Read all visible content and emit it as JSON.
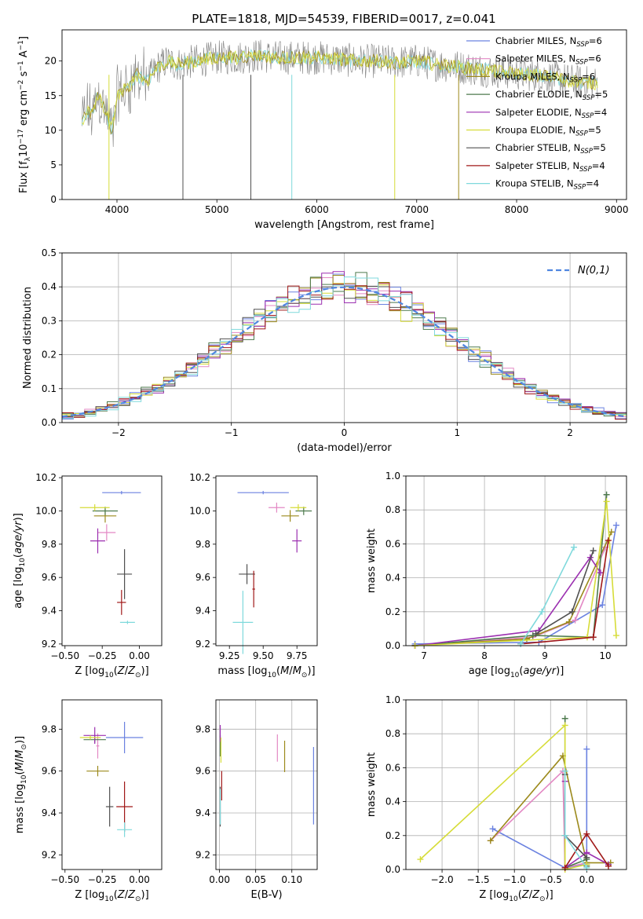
{
  "title": "PLATE=1818, MJD=54539, FIBERID=0017, z=0.041",
  "colors": {
    "series": [
      "#6b82e0",
      "#e388c4",
      "#9c8a1c",
      "#4e7a4e",
      "#9b2fb0",
      "#d6dc38",
      "#505050",
      "#a01818",
      "#7fd9dc"
    ],
    "spectrum_data": "#808080",
    "gauss": "#4f86e0"
  },
  "legend": [
    {
      "text": "Chabrier MILES, N",
      "sub": "SSP",
      "tail": "=6"
    },
    {
      "text": "Salpeter MILES, N",
      "sub": "SSP",
      "tail": "=6"
    },
    {
      "text": "Kroupa MILES, N",
      "sub": "SSP",
      "tail": "=6"
    },
    {
      "text": "Chabrier ELODIE, N",
      "sub": "SSP",
      "tail": "=5"
    },
    {
      "text": "Salpeter ELODIE, N",
      "sub": "SSP",
      "tail": "=4"
    },
    {
      "text": "Kroupa ELODIE, N",
      "sub": "SSP",
      "tail": "=5"
    },
    {
      "text": "Chabrier STELIB, N",
      "sub": "SSP",
      "tail": "=5"
    },
    {
      "text": "Salpeter STELIB, N",
      "sub": "SSP",
      "tail": "=4"
    },
    {
      "text": "Kroupa STELIB, N",
      "sub": "SSP",
      "tail": "=4"
    }
  ],
  "chart_data": [
    {
      "id": "spectrum",
      "type": "line",
      "xlabel": "wavelength [Angstrom, rest frame]",
      "ylabel": "Flux [f_λ 10^-17 erg cm^-2 s^-1 A^-1]",
      "xlim": [
        3450,
        9100
      ],
      "ylim": [
        0,
        24.5
      ],
      "xticks": [
        4000,
        5000,
        6000,
        7000,
        8000,
        9000
      ],
      "yticks": [
        0,
        5,
        10,
        15,
        20
      ],
      "continuum_points": {
        "x": [
          3650,
          3700,
          3750,
          3800,
          3850,
          3900,
          3950,
          4000,
          4100,
          4200,
          4300,
          4400,
          4500,
          4600,
          4800,
          5000,
          5200,
          5400,
          5600,
          5800,
          6000,
          6200,
          6400,
          6600,
          6800,
          7000,
          7200,
          7400,
          7600,
          7800,
          8000,
          8200,
          8400,
          8600,
          8800
        ],
        "y": [
          11,
          13,
          12,
          15,
          14,
          12,
          10,
          15,
          16,
          18,
          17,
          19,
          20,
          19.5,
          20,
          20.5,
          20.5,
          20.8,
          20.5,
          20.5,
          20.5,
          20.3,
          20,
          20,
          19.8,
          20,
          19.5,
          19.2,
          18.8,
          18.5,
          18.2,
          18,
          17.5,
          17,
          16.8
        ]
      }
    },
    {
      "id": "residuals",
      "type": "area",
      "xlabel": "(data-model)/error",
      "ylabel": "Normed distribution",
      "xlim": [
        -2.5,
        2.5
      ],
      "ylim": [
        0,
        0.5
      ],
      "xticks": [
        -2,
        -1,
        0,
        1,
        2
      ],
      "yticks": [
        0.0,
        0.1,
        0.2,
        0.3,
        0.4,
        0.5
      ],
      "gauss_label": "N(0,1)",
      "bin_width": 0.1
    },
    {
      "id": "age-vs-Z",
      "type": "scatter",
      "xlabel": "Z [log10(Z/Z⊙)]",
      "ylabel": "age [log10(age/yr)]",
      "xlim": [
        -0.52,
        0.15
      ],
      "ylim": [
        9.19,
        10.21
      ],
      "xticks": [
        -0.5,
        -0.25,
        0.0
      ],
      "yticks": [
        9.2,
        9.4,
        9.6,
        9.8,
        10.0,
        10.2
      ],
      "points": [
        {
          "x": -0.12,
          "y": 10.11,
          "xe": 0.26,
          "ye": 0.02,
          "c": 0
        },
        {
          "x": -0.22,
          "y": 9.87,
          "xe": 0.12,
          "ye": 0.1,
          "c": 1
        },
        {
          "x": -0.23,
          "y": 9.97,
          "xe": 0.15,
          "ye": 0.08,
          "c": 2
        },
        {
          "x": -0.23,
          "y": 10.0,
          "xe": 0.17,
          "ye": 0.05,
          "c": 3
        },
        {
          "x": -0.28,
          "y": 9.82,
          "xe": 0.1,
          "ye": 0.15,
          "c": 4
        },
        {
          "x": -0.3,
          "y": 10.02,
          "xe": 0.2,
          "ye": 0.04,
          "c": 5
        },
        {
          "x": -0.1,
          "y": 9.62,
          "xe": 0.1,
          "ye": 0.3,
          "c": 6
        },
        {
          "x": -0.12,
          "y": 9.45,
          "xe": 0.06,
          "ye": 0.15,
          "c": 7
        },
        {
          "x": -0.08,
          "y": 9.33,
          "xe": 0.1,
          "ye": 0.02,
          "c": 8
        }
      ]
    },
    {
      "id": "age-vs-mass",
      "type": "scatter",
      "xlabel": "mass [log10(M/M⊙)]",
      "ylabel": "",
      "xlim": [
        9.15,
        9.9
      ],
      "ylim": [
        9.19,
        10.21
      ],
      "xticks": [
        9.25,
        9.5,
        9.75
      ],
      "yticks": [
        9.2,
        9.4,
        9.6,
        9.8,
        10.0,
        10.2
      ],
      "points": [
        {
          "x": 9.5,
          "y": 10.11,
          "xe": 0.38,
          "ye": 0.02,
          "c": 0
        },
        {
          "x": 9.6,
          "y": 10.02,
          "xe": 0.12,
          "ye": 0.06,
          "c": 1
        },
        {
          "x": 9.7,
          "y": 9.97,
          "xe": 0.13,
          "ye": 0.07,
          "c": 2
        },
        {
          "x": 9.8,
          "y": 10.0,
          "xe": 0.12,
          "ye": 0.05,
          "c": 3
        },
        {
          "x": 9.75,
          "y": 9.82,
          "xe": 0.07,
          "ye": 0.14,
          "c": 4
        },
        {
          "x": 9.76,
          "y": 10.02,
          "xe": 0.12,
          "ye": 0.04,
          "c": 5
        },
        {
          "x": 9.38,
          "y": 9.62,
          "xe": 0.12,
          "ye": 0.12,
          "c": 6
        },
        {
          "x": 9.43,
          "y": 9.53,
          "xe": 0.02,
          "ye": 0.22,
          "c": 7
        },
        {
          "x": 9.35,
          "y": 9.33,
          "xe": 0.15,
          "ye": 0.38,
          "c": 8
        }
      ]
    },
    {
      "id": "sfh-age",
      "type": "line",
      "xlabel": "age [log10(age/yr)]",
      "ylabel": "mass weight",
      "xlim": [
        6.7,
        10.35
      ],
      "ylim": [
        0,
        1.0
      ],
      "xticks": [
        7,
        8,
        9,
        10
      ],
      "yticks": [
        0.0,
        0.2,
        0.4,
        0.6,
        0.8,
        1.0
      ],
      "series": [
        {
          "c": 0,
          "x": [
            6.85,
            8.9,
            9.95,
            10.18
          ],
          "y": [
            0.01,
            0.02,
            0.24,
            0.71
          ]
        },
        {
          "c": 1,
          "x": [
            6.85,
            8.8,
            9.5,
            10.0
          ],
          "y": [
            0.0,
            0.05,
            0.15,
            0.58
          ]
        },
        {
          "c": 2,
          "x": [
            6.85,
            8.7,
            9.4,
            10.1
          ],
          "y": [
            0.0,
            0.04,
            0.14,
            0.67
          ]
        },
        {
          "c": 3,
          "x": [
            6.85,
            8.8,
            9.8,
            10.02
          ],
          "y": [
            0.0,
            0.06,
            0.05,
            0.89
          ]
        },
        {
          "c": 4,
          "x": [
            6.85,
            8.9,
            9.75,
            9.92
          ],
          "y": [
            0.0,
            0.09,
            0.52,
            0.43
          ]
        },
        {
          "c": 5,
          "x": [
            6.85,
            9.7,
            10.02,
            10.18
          ],
          "y": [
            0.0,
            0.05,
            0.85,
            0.06
          ]
        },
        {
          "c": 6,
          "x": [
            8.85,
            9.45,
            9.8
          ],
          "y": [
            0.07,
            0.2,
            0.56
          ]
        },
        {
          "c": 7,
          "x": [
            8.6,
            9.8,
            10.05
          ],
          "y": [
            0.01,
            0.05,
            0.62
          ]
        },
        {
          "c": 8,
          "x": [
            8.6,
            8.95,
            9.48
          ],
          "y": [
            0.01,
            0.2,
            0.58
          ]
        }
      ]
    },
    {
      "id": "mass-vs-Z",
      "type": "scatter",
      "xlabel": "Z [log10(Z/Z⊙)]",
      "ylabel": "mass [log10(M/M⊙)]",
      "xlim": [
        -0.52,
        0.15
      ],
      "ylim": [
        9.13,
        9.94
      ],
      "xticks": [
        -0.5,
        -0.25,
        0.0
      ],
      "yticks": [
        9.2,
        9.4,
        9.6,
        9.8
      ],
      "points": [
        {
          "x": -0.1,
          "y": 9.76,
          "xe": 0.25,
          "ye": 0.15,
          "c": 0
        },
        {
          "x": -0.28,
          "y": 9.72,
          "xe": 0.02,
          "ye": 0.12,
          "c": 1
        },
        {
          "x": -0.28,
          "y": 9.6,
          "xe": 0.15,
          "ye": 0.05,
          "c": 2
        },
        {
          "x": -0.3,
          "y": 9.75,
          "xe": 0.15,
          "ye": 0.03,
          "c": 3
        },
        {
          "x": -0.3,
          "y": 9.77,
          "xe": 0.15,
          "ye": 0.08,
          "c": 4
        },
        {
          "x": -0.33,
          "y": 9.76,
          "xe": 0.14,
          "ye": 0.02,
          "c": 5
        },
        {
          "x": -0.2,
          "y": 9.43,
          "xe": 0.05,
          "ye": 0.19,
          "c": 6
        },
        {
          "x": -0.1,
          "y": 9.43,
          "xe": 0.11,
          "ye": 0.24,
          "c": 7
        },
        {
          "x": -0.1,
          "y": 9.32,
          "xe": 0.1,
          "ye": 0.07,
          "c": 8
        }
      ]
    },
    {
      "id": "mass-vs-ebv",
      "type": "scatter",
      "xlabel": "E(B-V)",
      "ylabel": "",
      "xlim": [
        -0.005,
        0.135
      ],
      "ylim": [
        9.13,
        9.94
      ],
      "xticks": [
        0.0,
        0.05,
        0.1
      ],
      "yticks": [
        9.2,
        9.4,
        9.6,
        9.8
      ],
      "points": [
        {
          "x": 0.13,
          "y": 9.53,
          "xe": 0,
          "ye": 0.37,
          "c": 0
        },
        {
          "x": 0.08,
          "y": 9.71,
          "xe": 0,
          "ye": 0.13,
          "c": 1
        },
        {
          "x": 0.09,
          "y": 9.67,
          "xe": 0,
          "ye": 0.15,
          "c": 2
        },
        {
          "x": 0.001,
          "y": 9.72,
          "xe": 0,
          "ye": 0.1,
          "c": 3
        },
        {
          "x": 0.001,
          "y": 9.78,
          "xe": 0,
          "ye": 0.08,
          "c": 4
        },
        {
          "x": 0.002,
          "y": 9.7,
          "xe": 0,
          "ye": 0.12,
          "c": 5
        },
        {
          "x": 0.001,
          "y": 9.43,
          "xe": 0,
          "ye": 0.19,
          "c": 6
        },
        {
          "x": 0.003,
          "y": 9.53,
          "xe": 0,
          "ye": 0.14,
          "c": 7
        },
        {
          "x": 0.001,
          "y": 9.43,
          "xe": 0,
          "ye": 0.17,
          "c": 8
        }
      ]
    },
    {
      "id": "sfh-Z",
      "type": "line",
      "xlabel": "Z [log10(Z/Z⊙)]",
      "ylabel": "mass weight",
      "xlim": [
        -2.5,
        0.55
      ],
      "ylim": [
        0,
        1.0
      ],
      "xticks": [
        -2.0,
        -1.5,
        -1.0,
        -0.5,
        0.0
      ],
      "yticks": [
        0.0,
        0.2,
        0.4,
        0.6,
        0.8,
        1.0
      ],
      "series": [
        {
          "c": 0,
          "x": [
            -1.3,
            -0.3,
            0.0,
            0.0
          ],
          "y": [
            0.24,
            0.01,
            0.03,
            0.71
          ]
        },
        {
          "c": 1,
          "x": [
            -1.33,
            -0.33,
            -0.3,
            0.0
          ],
          "y": [
            0.17,
            0.58,
            0.01,
            0.04
          ]
        },
        {
          "c": 2,
          "x": [
            -1.33,
            -0.33,
            0.0,
            0.33
          ],
          "y": [
            0.17,
            0.67,
            0.04,
            0.04
          ]
        },
        {
          "c": 3,
          "x": [
            -0.3,
            -0.3,
            0.0,
            0.0
          ],
          "y": [
            0.89,
            0.01,
            0.06,
            0.02
          ]
        },
        {
          "c": 4,
          "x": [
            -0.3,
            -0.3,
            0.0,
            0.3
          ],
          "y": [
            0.52,
            0.01,
            0.1,
            0.03
          ]
        },
        {
          "c": 5,
          "x": [
            -2.3,
            -0.3,
            -0.3,
            0.0
          ],
          "y": [
            0.06,
            0.85,
            0.0,
            0.03
          ]
        },
        {
          "c": 6,
          "x": [
            -0.3,
            -0.3,
            0.0
          ],
          "y": [
            0.56,
            0.2,
            0.07
          ]
        },
        {
          "c": 7,
          "x": [
            -0.3,
            0.0,
            0.3
          ],
          "y": [
            0.01,
            0.21,
            0.02
          ]
        },
        {
          "c": 8,
          "x": [
            -0.3,
            -0.3,
            0.0
          ],
          "y": [
            0.58,
            0.2,
            0.01
          ]
        }
      ]
    }
  ]
}
